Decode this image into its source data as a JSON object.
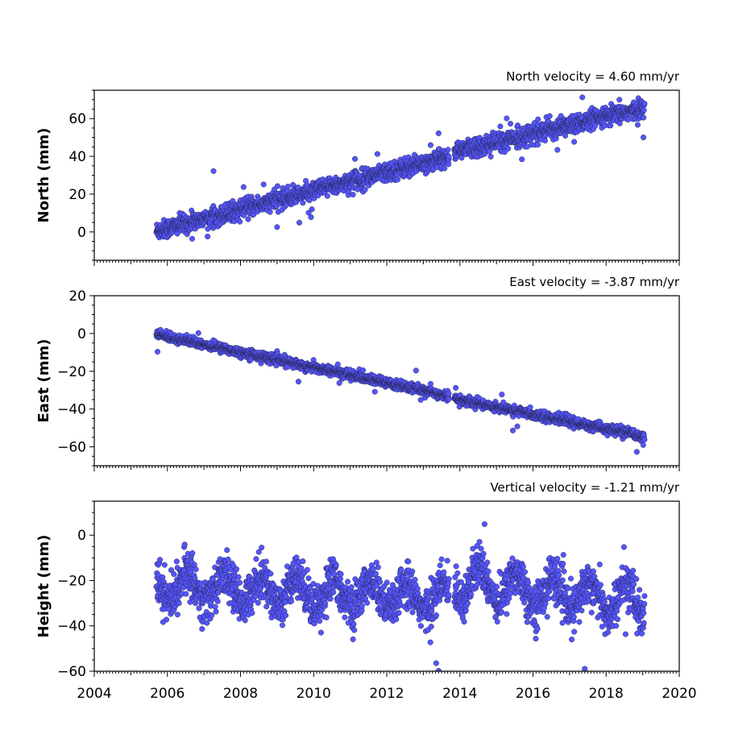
{
  "chart_data": [
    {
      "type": "scatter",
      "title": "North velocity = 4.60 mm/yr",
      "ylabel": "North (mm)",
      "xlim": [
        2004,
        2020
      ],
      "ylim": [
        -15,
        75
      ],
      "yticks": [
        0,
        20,
        40,
        60
      ],
      "xtick_labels_shown": false,
      "color": "#5555ff",
      "series": [
        {
          "segments": [
            {
              "x_start": 2005.7,
              "x_end": 2013.7,
              "y_start": 0.5,
              "y_end": 40,
              "noise": 3
            },
            {
              "x_start": 2013.85,
              "x_end": 2019.05,
              "y_start": 42.5,
              "y_end": 65.5,
              "noise": 3
            }
          ]
        }
      ]
    },
    {
      "type": "scatter",
      "title": "East velocity = -3.87 mm/yr",
      "ylabel": "East (mm)",
      "xlim": [
        2004,
        2020
      ],
      "ylim": [
        -70,
        20
      ],
      "yticks": [
        -60,
        -40,
        -20,
        0,
        20
      ],
      "xtick_labels_shown": false,
      "color": "#5555ff",
      "series": [
        {
          "segments": [
            {
              "x_start": 2005.7,
              "x_end": 2013.7,
              "y_start": -0.5,
              "y_end": -33,
              "noise": 1.5
            },
            {
              "x_start": 2013.85,
              "x_end": 2019.05,
              "y_start": -34.5,
              "y_end": -54.5,
              "noise": 1.5
            }
          ]
        }
      ]
    },
    {
      "type": "scatter",
      "title": "Vertical velocity = -1.21 mm/yr",
      "ylabel": "Height (mm)",
      "xlim": [
        2004,
        2020
      ],
      "ylim": [
        -60,
        15
      ],
      "yticks": [
        -60,
        -40,
        -20,
        0
      ],
      "xticks": [
        2004,
        2006,
        2008,
        2010,
        2012,
        2014,
        2016,
        2018,
        2020
      ],
      "xtick_labels_shown": true,
      "color": "#5555ff",
      "series": [
        {
          "segments": [
            {
              "x_start": 2005.7,
              "x_end": 2013.7,
              "y_start": -22,
              "y_end": -28,
              "noise": 6,
              "seasonal_amplitude": 6
            },
            {
              "x_start": 2013.85,
              "x_end": 2019.05,
              "y_start": -20,
              "y_end": -30,
              "noise": 6,
              "seasonal_amplitude": 7
            }
          ]
        }
      ]
    }
  ]
}
